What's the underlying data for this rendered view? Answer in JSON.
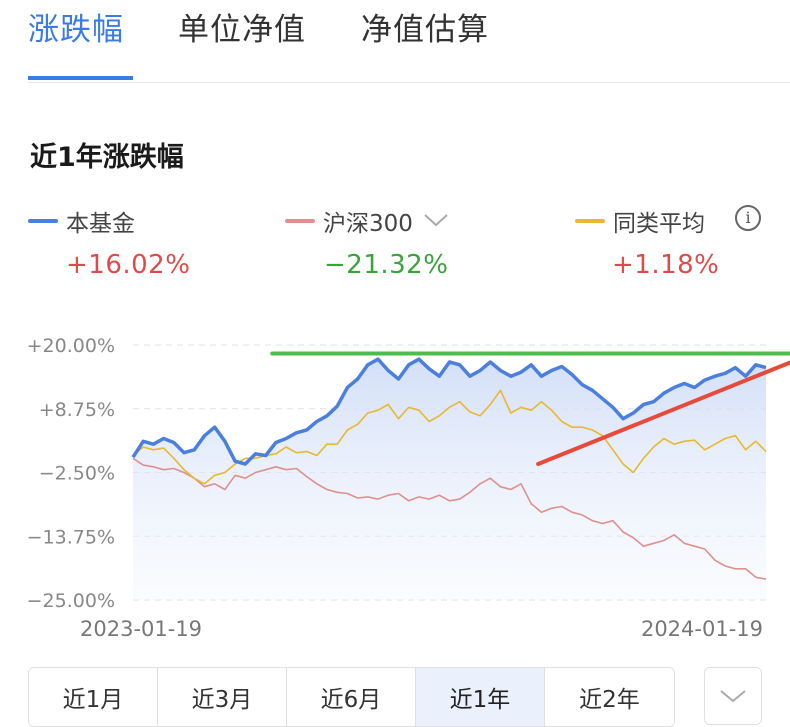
{
  "tabs": [
    {
      "label": "涨跌幅",
      "active": true
    },
    {
      "label": "单位净值",
      "active": false
    },
    {
      "label": "净值估算",
      "active": false
    }
  ],
  "section_title": "近1年涨跌幅",
  "legend": [
    {
      "name": "本基金",
      "value": "+16.02%",
      "color": "#4a7fe0",
      "value_color": "#e04a4a"
    },
    {
      "name": "沪深300",
      "value": "−21.32%",
      "color": "#e0908c",
      "value_color": "#3aa33a"
    },
    {
      "name": "同类平均",
      "value": "+1.18%",
      "color": "#e8b830",
      "value_color": "#e04a4a"
    }
  ],
  "icons": {
    "legend_dropdown": "chevron-down-icon",
    "info": "info-icon",
    "more": "chevron-down-icon"
  },
  "info_glyph": "i",
  "chart_data": {
    "type": "line",
    "y_ticks": [
      "+20.00%",
      "+8.75%",
      "−2.50%",
      "−13.75%",
      "−25.00%"
    ],
    "y_tick_values": [
      20,
      8.75,
      -2.5,
      -13.75,
      -25
    ],
    "ylim": [
      -25,
      20
    ],
    "x_tick_labels": [
      "2023-01-19",
      "2024-01-19"
    ],
    "grid": true,
    "series": [
      {
        "name": "本基金",
        "color": "#4a7fe0",
        "area": true,
        "values": [
          0.2,
          3,
          2.5,
          3.5,
          2.8,
          1,
          1.5,
          4,
          5.5,
          3,
          -0.5,
          -1,
          0.8,
          0.5,
          2.8,
          3.5,
          4.5,
          5,
          6.5,
          7.5,
          9.2,
          12.5,
          14,
          16.5,
          17.5,
          15.5,
          14,
          16.5,
          17.5,
          15.8,
          14.5,
          17,
          16.5,
          14.5,
          15.5,
          17,
          15.5,
          14.5,
          15.2,
          16.5,
          14.5,
          15.5,
          16.2,
          14.8,
          13,
          12,
          10.5,
          9,
          7,
          8,
          9.5,
          10,
          11.5,
          12.5,
          13.2,
          12.5,
          13.8,
          14.5,
          15,
          16,
          14.5,
          16.5,
          16.02
        ]
      },
      {
        "name": "沪深300",
        "color": "#e0908c",
        "area": false,
        "values": [
          0,
          -1.2,
          -1.5,
          -2,
          -1.8,
          -2.5,
          -3.5,
          -5,
          -4.5,
          -5.5,
          -3,
          -3.5,
          -2.5,
          -2,
          -1.5,
          -2,
          -1.8,
          -3.2,
          -4.5,
          -5.5,
          -6,
          -6.2,
          -7,
          -6.8,
          -7.2,
          -6.5,
          -6.2,
          -7.5,
          -6.8,
          -7.2,
          -6.5,
          -7.5,
          -7.2,
          -6,
          -4.5,
          -3.5,
          -5,
          -5.5,
          -4.5,
          -8,
          -9.5,
          -8.8,
          -8.5,
          -9.5,
          -10,
          -11,
          -11.5,
          -11,
          -13,
          -14,
          -15.5,
          -15,
          -14.5,
          -13.5,
          -15,
          -15.5,
          -16,
          -18,
          -19,
          -19.5,
          -19.5,
          -21,
          -21.32
        ]
      },
      {
        "name": "同类平均",
        "color": "#e8b830",
        "area": false,
        "values": [
          0.5,
          2,
          1.5,
          1.8,
          0,
          -2,
          -3.5,
          -4.5,
          -3,
          -2.5,
          -1,
          0,
          0,
          0.5,
          0.8,
          2,
          1,
          1.2,
          0.5,
          2.5,
          2.5,
          5,
          6,
          8,
          8.5,
          9.5,
          7,
          9,
          8.5,
          6.5,
          7.5,
          9,
          10,
          8.2,
          7.5,
          9.5,
          12,
          8,
          9,
          8.5,
          10,
          8.5,
          6.5,
          5.5,
          5.5,
          5,
          4,
          1.5,
          -1,
          -2.5,
          0,
          2,
          3.5,
          2.5,
          3,
          3.2,
          1.5,
          2.5,
          3.5,
          4,
          1.5,
          3,
          1.18
        ]
      }
    ],
    "annotations": [
      {
        "type": "line",
        "color": "#4cbd4c",
        "x_from": 0.22,
        "x_to": 1.04,
        "y_from": 18.5,
        "y_to": 18.5
      },
      {
        "type": "line",
        "color": "#e84a3a",
        "x_from": 0.64,
        "x_to": 1.04,
        "y_from": -1,
        "y_to": 17
      }
    ]
  },
  "range_buttons": [
    {
      "label": "近1月",
      "active": false
    },
    {
      "label": "近3月",
      "active": false
    },
    {
      "label": "近6月",
      "active": false
    },
    {
      "label": "近1年",
      "active": true
    },
    {
      "label": "近2年",
      "active": false
    }
  ]
}
